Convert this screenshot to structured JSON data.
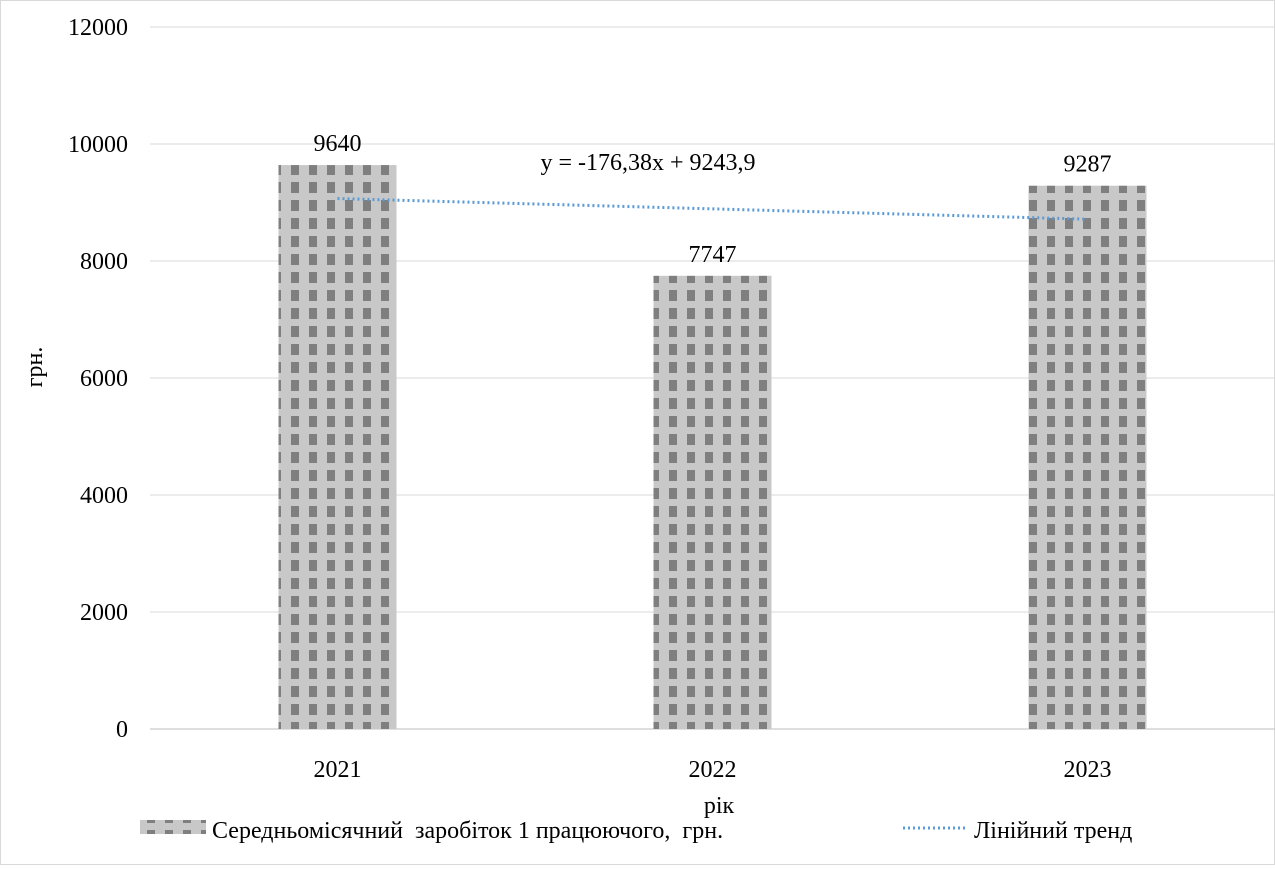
{
  "chart_data": {
    "type": "bar",
    "categories": [
      "2021",
      "2022",
      "2023"
    ],
    "series": [
      {
        "name": "Середньомісячний  заробіток 1 працюючого,  грн.",
        "values": [
          9640,
          7747,
          9287
        ]
      }
    ],
    "data_labels": [
      "9640",
      "7747",
      "9287"
    ],
    "trendline": {
      "name": "Лінійний тренд",
      "equation": "y = -176,38x + 9243,9",
      "slope": -176.38,
      "intercept": 9243.9,
      "style": "dotted",
      "color": "#5b9bd5"
    },
    "xlabel": "рік",
    "ylabel": "грн.",
    "ylim": [
      0,
      12000
    ],
    "yticks": [
      "0",
      "2000",
      "4000",
      "6000",
      "8000",
      "10000",
      "12000"
    ],
    "grid": true,
    "legend_position": "bottom",
    "colors": {
      "bar_dark": "#7f7f7f",
      "bar_light": "#c8c8c8",
      "grid": "#d9d9d9",
      "trend": "#5b9bd5"
    }
  }
}
